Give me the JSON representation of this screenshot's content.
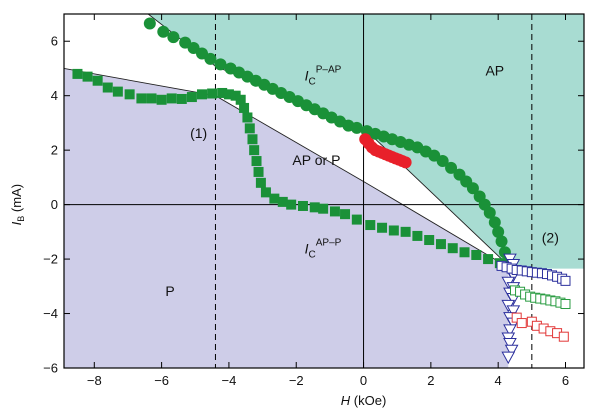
{
  "chart_data": {
    "type": "scatter",
    "xlabel": {
      "var": "H",
      "unit": " (kOe)"
    },
    "ylabel": {
      "var": "I",
      "sub": "B",
      "unit": " (mA)"
    },
    "xlim": [
      -8.9,
      6.55
    ],
    "ylim": [
      -6,
      7
    ],
    "xticks": [
      -8,
      -6,
      -4,
      -2,
      0,
      2,
      4,
      6
    ],
    "yticks": [
      -6,
      -4,
      -2,
      0,
      2,
      4,
      6
    ],
    "xtick_labels": [
      "−8",
      "−6",
      "−4",
      "−2",
      "0",
      "2",
      "4",
      "6"
    ],
    "ytick_labels": [
      "−6",
      "−4",
      "−2",
      "0",
      "2",
      "4",
      "6"
    ],
    "colors": {
      "ap_region": "#a8dcd2",
      "p_region": "#cecde8",
      "green": "#1a9138",
      "red": "#e8202a",
      "blue": "#2b2f9c",
      "sq_green": "#2a9c42",
      "sq_red": "#e23838"
    },
    "regions": {
      "ap": "AP",
      "p": "P",
      "mid": "AP or P"
    },
    "curve_labels": {
      "ic_pap": {
        "base": "I",
        "sub": "C",
        "sup": "P–AP"
      },
      "ic_app": {
        "base": "I",
        "sub": "C",
        "sup": "AP–P"
      },
      "marker1": "(1)",
      "marker2": "(2)"
    },
    "marker_lines_x": [
      -4.4,
      5.0
    ],
    "boundary_pap": [
      [
        -6.4,
        7.0
      ],
      [
        -4.4,
        5.08
      ],
      [
        0,
        2.82
      ],
      [
        4.4,
        -2.35
      ]
    ],
    "boundary_app": [
      [
        -8.9,
        5.0
      ],
      [
        -4.4,
        4.0
      ],
      [
        0,
        0.85
      ],
      [
        4.3,
        -2.3
      ]
    ],
    "series": [
      {
        "marker": "circle",
        "color": "green",
        "points": [
          [
            -6.35,
            6.65
          ],
          [
            -5.95,
            6.35
          ],
          [
            -5.65,
            6.15
          ],
          [
            -5.3,
            5.95
          ],
          [
            -5.05,
            5.75
          ],
          [
            -4.8,
            5.55
          ],
          [
            -4.55,
            5.35
          ],
          [
            -4.25,
            5.15
          ],
          [
            -3.95,
            5.0
          ],
          [
            -3.7,
            4.85
          ],
          [
            -3.45,
            4.7
          ],
          [
            -3.2,
            4.55
          ],
          [
            -2.95,
            4.4
          ],
          [
            -2.7,
            4.25
          ],
          [
            -2.45,
            4.1
          ],
          [
            -2.2,
            3.95
          ],
          [
            -1.95,
            3.8
          ],
          [
            -1.7,
            3.65
          ],
          [
            -1.45,
            3.5
          ],
          [
            -1.2,
            3.35
          ],
          [
            -0.95,
            3.2
          ],
          [
            -0.7,
            3.05
          ],
          [
            -0.45,
            2.9
          ],
          [
            -0.2,
            2.82
          ],
          [
            0.1,
            2.7
          ],
          [
            0.35,
            2.6
          ],
          [
            0.6,
            2.5
          ],
          [
            0.85,
            2.4
          ],
          [
            1.1,
            2.3
          ],
          [
            1.35,
            2.2
          ],
          [
            1.6,
            2.1
          ],
          [
            1.85,
            1.95
          ],
          [
            2.1,
            1.8
          ],
          [
            2.35,
            1.6
          ],
          [
            2.6,
            1.35
          ],
          [
            2.85,
            1.1
          ],
          [
            3.05,
            0.85
          ],
          [
            3.25,
            0.6
          ],
          [
            3.45,
            0.3
          ],
          [
            3.6,
            0.0
          ],
          [
            3.75,
            -0.3
          ],
          [
            3.9,
            -0.65
          ],
          [
            4.0,
            -1.0
          ],
          [
            4.1,
            -1.35
          ],
          [
            4.2,
            -1.75
          ],
          [
            4.3,
            -2.1
          ]
        ]
      },
      {
        "marker": "square",
        "color": "green",
        "points": [
          [
            -8.5,
            4.8
          ],
          [
            -8.2,
            4.7
          ],
          [
            -7.9,
            4.55
          ],
          [
            -7.6,
            4.3
          ],
          [
            -7.3,
            4.15
          ],
          [
            -6.95,
            4.05
          ],
          [
            -6.6,
            3.9
          ],
          [
            -6.3,
            3.9
          ],
          [
            -6.0,
            3.85
          ],
          [
            -5.7,
            3.9
          ],
          [
            -5.4,
            3.88
          ],
          [
            -5.1,
            3.95
          ],
          [
            -4.8,
            4.05
          ],
          [
            -4.5,
            4.08
          ],
          [
            -4.2,
            4.1
          ],
          [
            -4.0,
            4.05
          ],
          [
            -3.8,
            4.0
          ],
          [
            -3.65,
            3.85
          ],
          [
            -3.55,
            3.55
          ],
          [
            -3.45,
            3.2
          ],
          [
            -3.38,
            2.8
          ],
          [
            -3.3,
            2.4
          ],
          [
            -3.25,
            2.0
          ],
          [
            -3.18,
            1.6
          ],
          [
            -3.12,
            1.2
          ],
          [
            -3.05,
            0.8
          ],
          [
            -2.9,
            0.45
          ],
          [
            -2.65,
            0.22
          ],
          [
            -2.4,
            0.1
          ],
          [
            -2.15,
            0.0
          ],
          [
            -1.8,
            -0.05
          ],
          [
            -1.45,
            -0.1
          ],
          [
            -1.2,
            -0.15
          ],
          [
            -0.85,
            -0.25
          ],
          [
            -0.55,
            -0.35
          ],
          [
            -0.2,
            -0.55
          ],
          [
            0.2,
            -0.75
          ],
          [
            0.55,
            -0.85
          ],
          [
            0.9,
            -0.95
          ],
          [
            1.25,
            -1.0
          ],
          [
            1.6,
            -1.15
          ],
          [
            1.95,
            -1.3
          ],
          [
            2.3,
            -1.45
          ],
          [
            2.65,
            -1.6
          ],
          [
            3.0,
            -1.75
          ],
          [
            3.35,
            -1.85
          ],
          [
            3.7,
            -2.0
          ],
          [
            4.05,
            -2.15
          ],
          [
            4.3,
            -2.25
          ]
        ]
      },
      {
        "marker": "circle",
        "color": "red",
        "points": [
          [
            0.05,
            2.4
          ],
          [
            0.15,
            2.25
          ],
          [
            0.25,
            2.1
          ],
          [
            0.35,
            2.0
          ],
          [
            0.45,
            1.95
          ],
          [
            0.55,
            1.9
          ],
          [
            0.65,
            1.85
          ],
          [
            0.75,
            1.8
          ],
          [
            0.85,
            1.75
          ],
          [
            0.95,
            1.7
          ],
          [
            1.05,
            1.65
          ],
          [
            1.15,
            1.6
          ],
          [
            1.25,
            1.55
          ]
        ]
      },
      {
        "marker": "triangle-down",
        "color": "blue",
        "points": [
          [
            4.35,
            -2.0
          ],
          [
            4.45,
            -2.2
          ],
          [
            4.35,
            -2.4
          ],
          [
            4.45,
            -2.6
          ],
          [
            4.3,
            -2.85
          ],
          [
            4.45,
            -3.05
          ],
          [
            4.35,
            -3.25
          ],
          [
            4.45,
            -3.45
          ],
          [
            4.3,
            -3.7
          ],
          [
            4.45,
            -3.9
          ],
          [
            4.35,
            -4.15
          ],
          [
            4.45,
            -4.35
          ],
          [
            4.35,
            -4.6
          ],
          [
            4.3,
            -4.9
          ],
          [
            4.35,
            -5.1
          ],
          [
            4.4,
            -5.35
          ],
          [
            4.3,
            -5.6
          ]
        ]
      },
      {
        "marker": "square-open",
        "color": "blue",
        "points": [
          [
            4.1,
            -2.25
          ],
          [
            4.25,
            -2.3
          ],
          [
            4.4,
            -2.35
          ],
          [
            4.55,
            -2.4
          ],
          [
            4.7,
            -2.42
          ],
          [
            4.85,
            -2.45
          ],
          [
            5.0,
            -2.48
          ],
          [
            5.15,
            -2.5
          ],
          [
            5.3,
            -2.52
          ],
          [
            5.45,
            -2.55
          ],
          [
            5.6,
            -2.6
          ],
          [
            5.75,
            -2.65
          ],
          [
            5.9,
            -2.72
          ],
          [
            6.0,
            -2.8
          ]
        ]
      },
      {
        "marker": "square-open",
        "color": "sq_green",
        "points": [
          [
            4.5,
            -3.15
          ],
          [
            4.65,
            -3.2
          ],
          [
            4.8,
            -3.3
          ],
          [
            4.95,
            -3.38
          ],
          [
            5.1,
            -3.42
          ],
          [
            5.25,
            -3.45
          ],
          [
            5.4,
            -3.48
          ],
          [
            5.55,
            -3.52
          ],
          [
            5.7,
            -3.55
          ],
          [
            5.85,
            -3.6
          ],
          [
            6.0,
            -3.65
          ]
        ]
      },
      {
        "marker": "square-open",
        "color": "sq_red",
        "points": [
          [
            4.55,
            -4.15
          ],
          [
            4.7,
            -4.35
          ],
          [
            5.0,
            -4.3
          ],
          [
            5.15,
            -4.45
          ],
          [
            5.35,
            -4.55
          ],
          [
            5.55,
            -4.65
          ],
          [
            5.75,
            -4.72
          ],
          [
            5.95,
            -4.85
          ]
        ]
      }
    ]
  }
}
